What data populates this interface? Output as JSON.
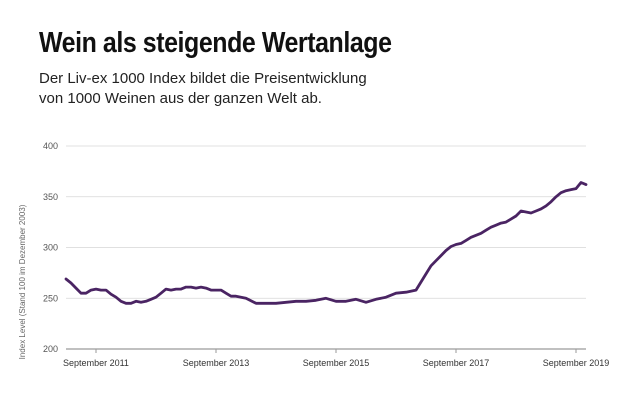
{
  "chart_data": {
    "type": "line",
    "title": "Wein als steigende Wertanlage",
    "subtitle_lines": [
      "Der Liv-ex 1000 Index bildet die Preisentwicklung",
      "von 1000 Weinen aus der ganzen Welt ab."
    ],
    "ylabel": "Index Level (Stand 100 im Dezember 2003)",
    "xlabel": "",
    "ylim": [
      200,
      400
    ],
    "yticks": [
      200,
      250,
      300,
      350,
      400
    ],
    "xlim": [
      "2011-03",
      "2019-11"
    ],
    "xticks": [
      "2011-09",
      "2013-09",
      "2015-09",
      "2017-09",
      "2019-09"
    ],
    "xtick_labels": [
      "September 2011",
      "September 2013",
      "September 2015",
      "September 2017",
      "September 2019"
    ],
    "grid": true,
    "line_color": "#4a2463",
    "series": [
      {
        "x": [
          "2011-03",
          "2011-04",
          "2011-05",
          "2011-06",
          "2011-07",
          "2011-08",
          "2011-09",
          "2011-10",
          "2011-11",
          "2011-12",
          "2012-01",
          "2012-02",
          "2012-03",
          "2012-04",
          "2012-05",
          "2012-06",
          "2012-07",
          "2012-08",
          "2012-09",
          "2012-10",
          "2012-11",
          "2012-12",
          "2013-01",
          "2013-02",
          "2013-03",
          "2013-04",
          "2013-05",
          "2013-06",
          "2013-07",
          "2013-08",
          "2013-09",
          "2013-10",
          "2013-11",
          "2013-12",
          "2014-01",
          "2014-03",
          "2014-05",
          "2014-07",
          "2014-09",
          "2014-11",
          "2015-01",
          "2015-03",
          "2015-05",
          "2015-07",
          "2015-09",
          "2015-11",
          "2016-01",
          "2016-03",
          "2016-05",
          "2016-07",
          "2016-09",
          "2016-11",
          "2017-01",
          "2017-02",
          "2017-03",
          "2017-04",
          "2017-05",
          "2017-06",
          "2017-07",
          "2017-08",
          "2017-09",
          "2017-10",
          "2017-11",
          "2017-12",
          "2018-01",
          "2018-02",
          "2018-03",
          "2018-04",
          "2018-05",
          "2018-06",
          "2018-07",
          "2018-08",
          "2018-09",
          "2018-10",
          "2018-11",
          "2018-12",
          "2019-01",
          "2019-02",
          "2019-03",
          "2019-04",
          "2019-05",
          "2019-06",
          "2019-07",
          "2019-08",
          "2019-09",
          "2019-10",
          "2019-11"
        ],
        "values": [
          269,
          265,
          260,
          255,
          255,
          258,
          259,
          258,
          258,
          254,
          251,
          247,
          245,
          245,
          247,
          246,
          247,
          249,
          251,
          255,
          259,
          258,
          259,
          259,
          261,
          261,
          260,
          261,
          260,
          258,
          258,
          258,
          255,
          252,
          252,
          250,
          245,
          245,
          245,
          246,
          247,
          247,
          248,
          250,
          247,
          247,
          249,
          246,
          249,
          251,
          255,
          256,
          258,
          266,
          274,
          282,
          287,
          292,
          297,
          301,
          303,
          304,
          307,
          310,
          312,
          314,
          317,
          320,
          322,
          324,
          325,
          328,
          331,
          336,
          335,
          334,
          336,
          338,
          341,
          345,
          350,
          354,
          356,
          357,
          358,
          364,
          362
        ]
      }
    ]
  }
}
